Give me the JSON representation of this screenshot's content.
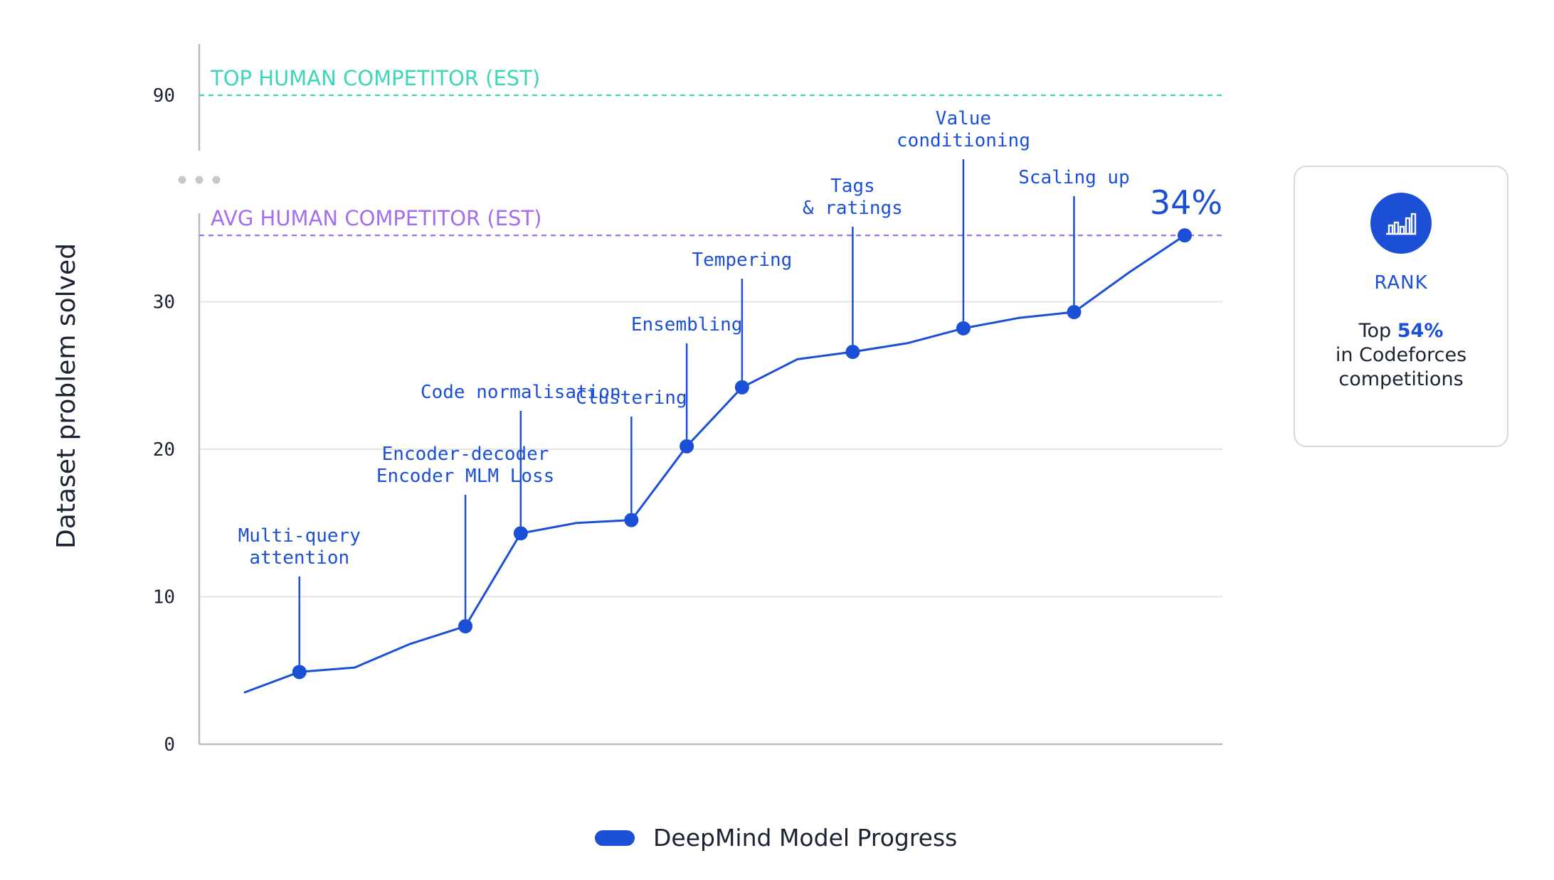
{
  "chart_data": {
    "type": "line",
    "ylabel": "Dataset problem solved",
    "y_ticks": [
      "0",
      "10",
      "20",
      "30",
      "90"
    ],
    "axis_break": true,
    "reference_lines": [
      {
        "label": "TOP HUMAN COMPETITOR (EST)",
        "value": 90,
        "color": "#3dd6b8"
      },
      {
        "label": "AVG HUMAN COMPETITOR (EST)",
        "value": 34.5,
        "color": "#a56ef0"
      }
    ],
    "series": [
      {
        "name": "DeepMind Model Progress",
        "color": "#1a4fd6",
        "points": [
          {
            "y": 3.5
          },
          {
            "y": 4.9,
            "marker": true
          },
          {
            "y": 5.2
          },
          {
            "y": 6.8
          },
          {
            "y": 8.0,
            "marker": true
          },
          {
            "y": 14.3,
            "marker": true
          },
          {
            "y": 15.0
          },
          {
            "y": 15.2,
            "marker": true
          },
          {
            "y": 20.2,
            "marker": true
          },
          {
            "y": 24.2,
            "marker": true
          },
          {
            "y": 26.1
          },
          {
            "y": 26.6,
            "marker": true
          },
          {
            "y": 27.2
          },
          {
            "y": 28.2,
            "marker": true
          },
          {
            "y": 28.9
          },
          {
            "y": 29.3,
            "marker": true
          },
          {
            "y": 32.0
          },
          {
            "y": 34.5,
            "marker": true
          }
        ]
      }
    ],
    "annotations": [
      {
        "point": 1,
        "lines": [
          "Multi-query",
          "attention"
        ]
      },
      {
        "point": 4,
        "lines": [
          "Encoder-decoder",
          "Encoder MLM Loss"
        ]
      },
      {
        "point": 5,
        "lines": [
          "Code normalisation"
        ]
      },
      {
        "point": 7,
        "lines": [
          "Clustering"
        ]
      },
      {
        "point": 8,
        "lines": [
          "Ensembling"
        ]
      },
      {
        "point": 9,
        "lines": [
          "Tempering"
        ]
      },
      {
        "point": 11,
        "lines": [
          "Tags",
          "& ratings"
        ]
      },
      {
        "point": 13,
        "lines": [
          "Value",
          "conditioning"
        ]
      },
      {
        "point": 15,
        "lines": [
          "Scaling up"
        ]
      }
    ],
    "final_label": "34%",
    "legend": {
      "label": "DeepMind Model Progress",
      "position": "bottom-center"
    }
  },
  "rank_card": {
    "title": "RANK",
    "prefix": "Top ",
    "percent": "54%",
    "line2": "in Codeforces",
    "line3": "competitions",
    "icon": "bar-chart-icon"
  }
}
